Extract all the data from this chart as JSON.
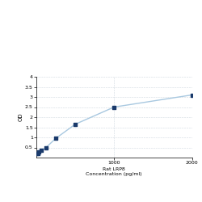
{
  "x": [
    0,
    15.6,
    31.25,
    62.5,
    125,
    250,
    500,
    1000,
    2000
  ],
  "y": [
    0.2,
    0.22,
    0.27,
    0.35,
    0.5,
    0.95,
    1.65,
    2.5,
    3.1
  ],
  "xlabel_line1": "Rat LRP8",
  "xlabel_line2": "Concentration (pg/ml)",
  "ylabel": "OD",
  "xlim": [
    0,
    2000
  ],
  "ylim": [
    0,
    4
  ],
  "yticks": [
    0.5,
    1.0,
    1.5,
    2.0,
    2.5,
    3.0,
    3.5,
    4.0
  ],
  "ytick_labels": [
    "0.5",
    "1",
    "1.5",
    "2",
    "2.5",
    "3",
    "3.5",
    "4"
  ],
  "xticks": [
    1000,
    2000
  ],
  "xtick_labels": [
    "1000",
    "2000"
  ],
  "line_color": "#a8c8e0",
  "marker_color": "#1a3a6b",
  "marker_size": 3.5,
  "grid_color": "#d0d8e0",
  "background_color": "#ffffff",
  "fig_width": 2.5,
  "fig_height": 2.5,
  "dpi": 100
}
